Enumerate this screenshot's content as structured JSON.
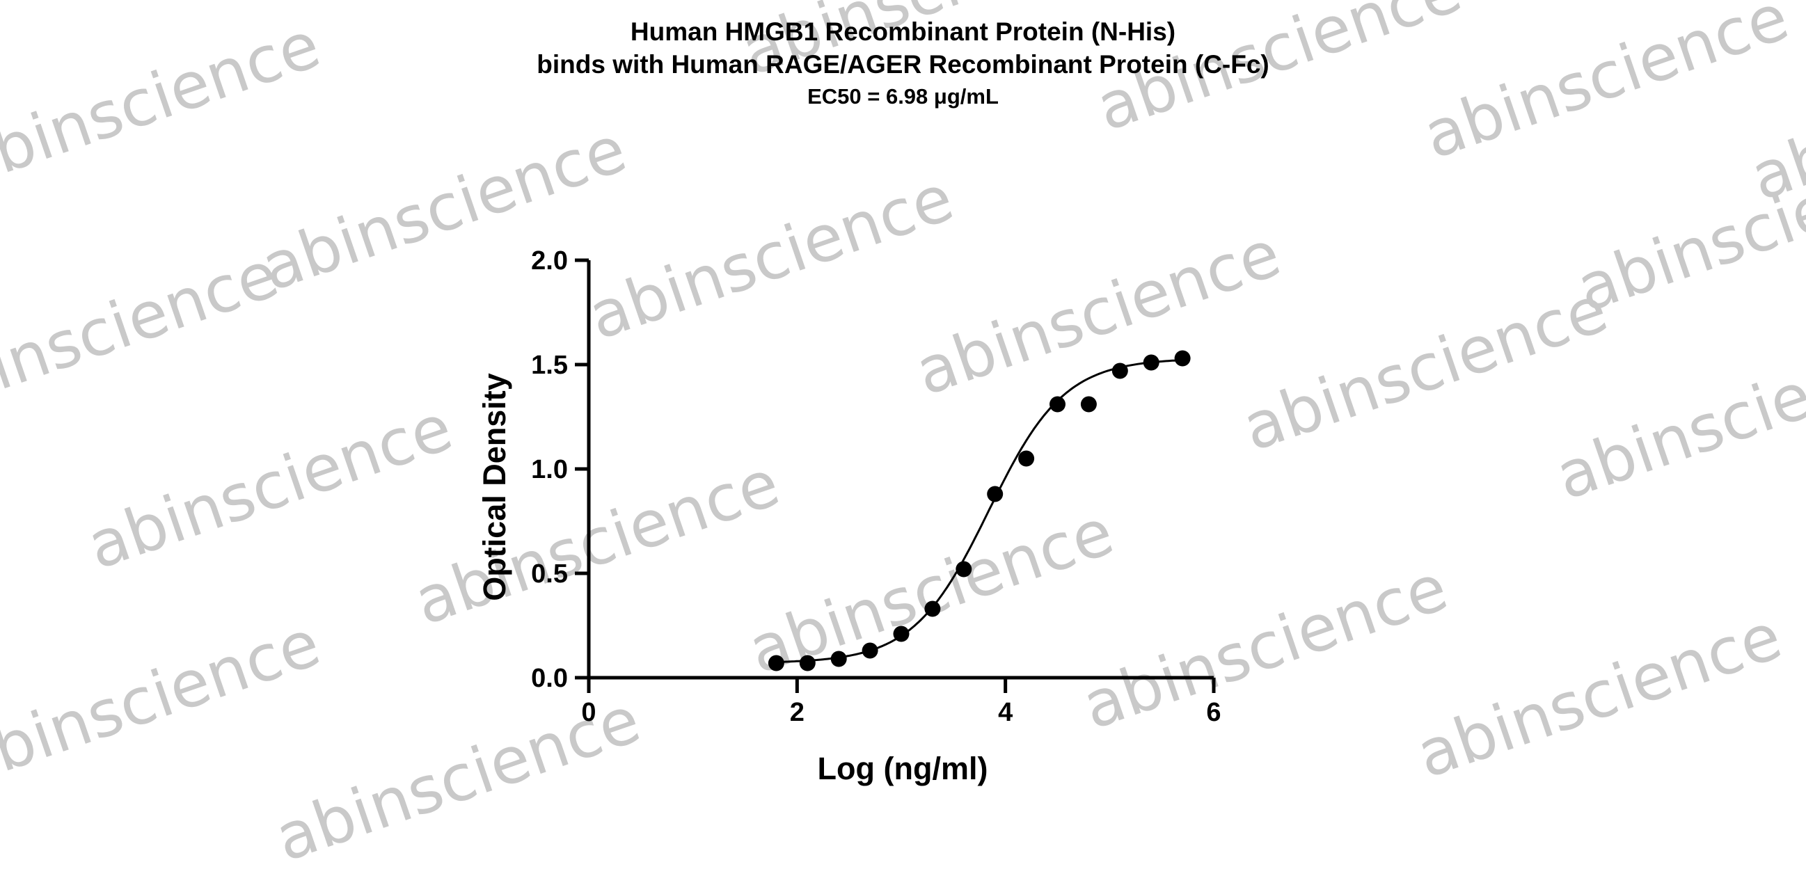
{
  "watermark_text": "abinscience",
  "chart_data": {
    "type": "scatter",
    "title": "Human HMGB1 Recombinant Protein (N-His)",
    "title_line2": "binds with Human RAGE/AGER Recombinant Protein (C-Fc)",
    "subtitle": "EC50 = 6.98 μg/mL",
    "xlabel": "Log (ng/ml)",
    "ylabel": "Optical Density",
    "xlim": [
      0,
      6
    ],
    "ylim": [
      0,
      2
    ],
    "x_ticks": [
      0,
      2,
      4,
      6
    ],
    "x_tick_labels": [
      "0",
      "2",
      "4",
      "6"
    ],
    "y_ticks": [
      0,
      0.5,
      1,
      1.5,
      2
    ],
    "y_tick_labels": [
      "0.0",
      "0.5",
      "1.0",
      "1.5",
      "2.0"
    ],
    "grid": false,
    "series": [
      {
        "x": [
          1.8,
          2.1,
          2.4,
          2.7,
          3.0,
          3.3,
          3.6,
          3.9,
          4.2,
          4.5,
          4.8,
          5.1,
          5.4,
          5.7
        ],
        "y": [
          0.07,
          0.07,
          0.09,
          0.13,
          0.21,
          0.33,
          0.52,
          0.88,
          1.05,
          1.31,
          1.31,
          1.47,
          1.51,
          1.53
        ],
        "marker": "circle",
        "color": "#000000"
      }
    ],
    "fit_curve": {
      "model": "4PL",
      "x_range": [
        1.8,
        5.7
      ],
      "bottom": 0.07,
      "top": 1.53,
      "log_ec50": 3.84,
      "hill_slope": 1.2
    }
  }
}
